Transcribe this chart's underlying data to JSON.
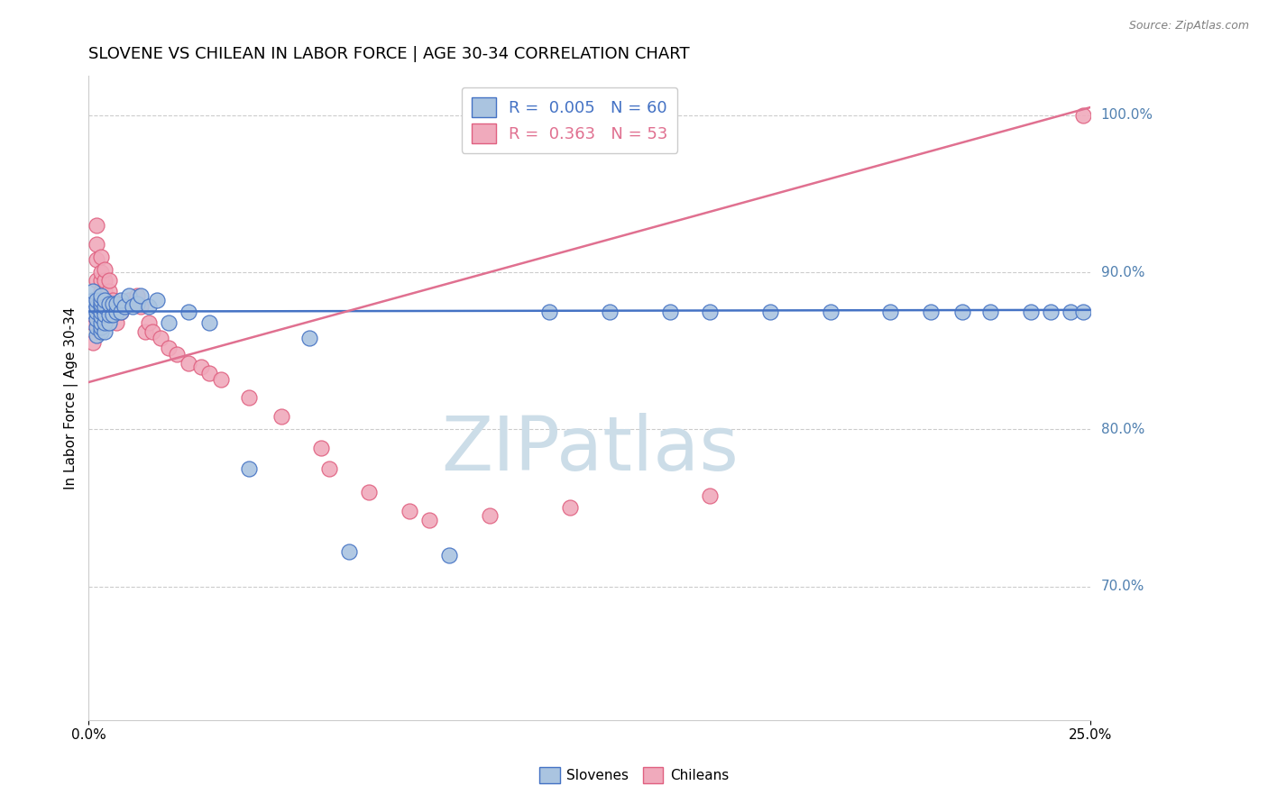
{
  "title": "SLOVENE VS CHILEAN IN LABOR FORCE | AGE 30-34 CORRELATION CHART",
  "source_text": "Source: ZipAtlas.com",
  "ylabel": "In Labor Force | Age 30-34",
  "ytick_labels": [
    "100.0%",
    "90.0%",
    "80.0%",
    "70.0%"
  ],
  "ytick_values": [
    1.0,
    0.9,
    0.8,
    0.7
  ],
  "xlim": [
    0.0,
    0.25
  ],
  "ylim": [
    0.615,
    1.025
  ],
  "xtick_positions": [
    0.0,
    0.25
  ],
  "xtick_labels": [
    "0.0%",
    "25.0%"
  ],
  "blue_scatter_x": [
    0.001,
    0.001,
    0.001,
    0.002,
    0.002,
    0.002,
    0.002,
    0.002,
    0.002,
    0.003,
    0.003,
    0.003,
    0.003,
    0.003,
    0.003,
    0.003,
    0.003,
    0.003,
    0.004,
    0.004,
    0.004,
    0.004,
    0.004,
    0.005,
    0.005,
    0.005,
    0.006,
    0.006,
    0.007,
    0.007,
    0.008,
    0.008,
    0.009,
    0.01,
    0.011,
    0.012,
    0.013,
    0.015,
    0.017,
    0.02,
    0.025,
    0.03,
    0.04,
    0.055,
    0.065,
    0.09,
    0.115,
    0.13,
    0.145,
    0.155,
    0.17,
    0.185,
    0.2,
    0.21,
    0.218,
    0.225,
    0.235,
    0.24,
    0.245,
    0.248
  ],
  "blue_scatter_y": [
    0.875,
    0.882,
    0.888,
    0.86,
    0.865,
    0.87,
    0.875,
    0.878,
    0.882,
    0.862,
    0.865,
    0.868,
    0.872,
    0.875,
    0.878,
    0.88,
    0.882,
    0.885,
    0.862,
    0.868,
    0.873,
    0.878,
    0.882,
    0.868,
    0.873,
    0.88,
    0.873,
    0.88,
    0.875,
    0.88,
    0.875,
    0.882,
    0.878,
    0.885,
    0.878,
    0.88,
    0.885,
    0.878,
    0.882,
    0.868,
    0.875,
    0.868,
    0.775,
    0.858,
    0.722,
    0.72,
    0.875,
    0.875,
    0.875,
    0.875,
    0.875,
    0.875,
    0.875,
    0.875,
    0.875,
    0.875,
    0.875,
    0.875,
    0.875,
    0.875
  ],
  "blue_R": 0.005,
  "blue_N": 60,
  "blue_trend_x": [
    0.0,
    0.25
  ],
  "blue_trend_y": [
    0.875,
    0.876
  ],
  "pink_scatter_x": [
    0.001,
    0.001,
    0.001,
    0.002,
    0.002,
    0.002,
    0.002,
    0.003,
    0.003,
    0.003,
    0.003,
    0.003,
    0.003,
    0.004,
    0.004,
    0.004,
    0.004,
    0.004,
    0.005,
    0.005,
    0.005,
    0.005,
    0.006,
    0.006,
    0.007,
    0.007,
    0.008,
    0.009,
    0.01,
    0.011,
    0.012,
    0.013,
    0.014,
    0.015,
    0.016,
    0.018,
    0.02,
    0.022,
    0.025,
    0.028,
    0.03,
    0.033,
    0.04,
    0.048,
    0.058,
    0.06,
    0.07,
    0.08,
    0.085,
    0.1,
    0.12,
    0.155,
    0.248
  ],
  "pink_scatter_y": [
    0.868,
    0.873,
    0.855,
    0.895,
    0.93,
    0.918,
    0.908,
    0.875,
    0.882,
    0.888,
    0.895,
    0.9,
    0.91,
    0.875,
    0.882,
    0.888,
    0.895,
    0.902,
    0.872,
    0.88,
    0.888,
    0.895,
    0.875,
    0.882,
    0.868,
    0.875,
    0.875,
    0.878,
    0.882,
    0.88,
    0.885,
    0.878,
    0.862,
    0.868,
    0.862,
    0.858,
    0.852,
    0.848,
    0.842,
    0.84,
    0.836,
    0.832,
    0.82,
    0.808,
    0.788,
    0.775,
    0.76,
    0.748,
    0.742,
    0.745,
    0.75,
    0.758,
    1.0
  ],
  "pink_R": 0.363,
  "pink_N": 53,
  "pink_trend_x": [
    0.0,
    0.25
  ],
  "pink_trend_y": [
    0.83,
    1.005
  ],
  "blue_color": "#aac4e0",
  "pink_color": "#f0aabc",
  "blue_edge_color": "#4472c4",
  "pink_edge_color": "#e06080",
  "blue_line_color": "#4472c4",
  "pink_line_color": "#e07090",
  "background_color": "#ffffff",
  "grid_color": "#cccccc",
  "right_label_color": "#5080b0",
  "title_fontsize": 13,
  "label_fontsize": 11,
  "tick_fontsize": 11,
  "source_fontsize": 9,
  "legend_fontsize": 13,
  "watermark_text": "ZIPatlas",
  "watermark_color": "#ccdde8",
  "watermark_fontsize": 60
}
